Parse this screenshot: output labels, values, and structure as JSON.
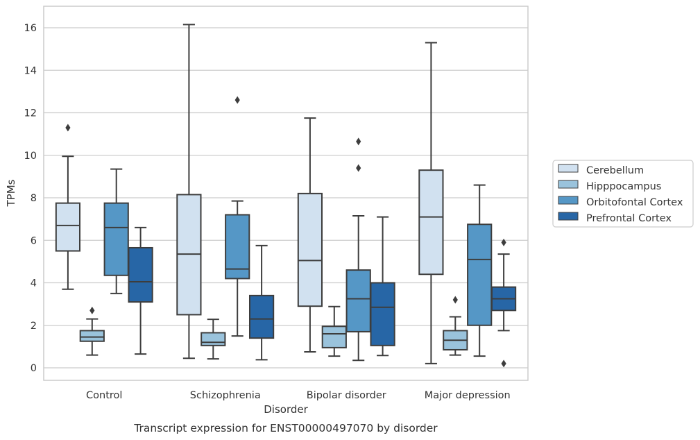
{
  "chart_data": {
    "type": "box",
    "xlabel": "Disorder",
    "ylabel": "TPMs",
    "caption": "Transcript expression for ENST00000497070 by disorder",
    "ylim": [
      -0.6,
      17
    ],
    "yticks": [
      0,
      2,
      4,
      6,
      8,
      10,
      12,
      14,
      16
    ],
    "grid": true,
    "legend_position": "right",
    "categories": [
      "Control",
      "Schizophrenia",
      "Bipolar disorder",
      "Major depression"
    ],
    "series": [
      {
        "name": "Cerebellum",
        "color": "#d1e1f0",
        "boxes": [
          {
            "whisker_low": 3.7,
            "q1": 5.5,
            "median": 6.7,
            "q3": 7.75,
            "whisker_high": 9.95,
            "outliers": [
              11.3
            ]
          },
          {
            "whisker_low": 0.45,
            "q1": 2.5,
            "median": 5.35,
            "q3": 8.15,
            "whisker_high": 16.15,
            "outliers": []
          },
          {
            "whisker_low": 0.75,
            "q1": 2.9,
            "median": 5.05,
            "q3": 8.2,
            "whisker_high": 11.75,
            "outliers": []
          },
          {
            "whisker_low": 0.2,
            "q1": 4.4,
            "median": 7.1,
            "q3": 9.3,
            "whisker_high": 15.3,
            "outliers": []
          }
        ]
      },
      {
        "name": "Hipppocampus",
        "color": "#9ac3dc",
        "boxes": [
          {
            "whisker_low": 0.6,
            "q1": 1.25,
            "median": 1.45,
            "q3": 1.75,
            "whisker_high": 2.3,
            "outliers": [
              2.7
            ]
          },
          {
            "whisker_low": 0.42,
            "q1": 1.05,
            "median": 1.2,
            "q3": 1.65,
            "whisker_high": 2.28,
            "outliers": []
          },
          {
            "whisker_low": 0.55,
            "q1": 0.95,
            "median": 1.6,
            "q3": 1.95,
            "whisker_high": 2.88,
            "outliers": []
          },
          {
            "whisker_low": 0.6,
            "q1": 0.85,
            "median": 1.3,
            "q3": 1.75,
            "whisker_high": 2.4,
            "outliers": [
              3.2
            ]
          }
        ]
      },
      {
        "name": "Orbitofontal Cortex",
        "color": "#5597c6",
        "boxes": [
          {
            "whisker_low": 3.5,
            "q1": 4.35,
            "median": 6.6,
            "q3": 7.75,
            "whisker_high": 9.35,
            "outliers": []
          },
          {
            "whisker_low": 1.5,
            "q1": 4.2,
            "median": 4.65,
            "q3": 7.2,
            "whisker_high": 7.85,
            "outliers": [
              12.6
            ]
          },
          {
            "whisker_low": 0.35,
            "q1": 1.7,
            "median": 3.25,
            "q3": 4.6,
            "whisker_high": 7.15,
            "outliers": [
              9.4,
              10.65
            ]
          },
          {
            "whisker_low": 0.55,
            "q1": 2.0,
            "median": 5.1,
            "q3": 6.75,
            "whisker_high": 8.6,
            "outliers": []
          }
        ]
      },
      {
        "name": "Prefrontal Cortex",
        "color": "#2766a6",
        "boxes": [
          {
            "whisker_low": 0.65,
            "q1": 3.1,
            "median": 4.05,
            "q3": 5.65,
            "whisker_high": 6.6,
            "outliers": []
          },
          {
            "whisker_low": 0.38,
            "q1": 1.4,
            "median": 2.3,
            "q3": 3.4,
            "whisker_high": 5.75,
            "outliers": []
          },
          {
            "whisker_low": 0.58,
            "q1": 1.05,
            "median": 2.85,
            "q3": 4.0,
            "whisker_high": 7.1,
            "outliers": []
          },
          {
            "whisker_low": 1.75,
            "q1": 2.7,
            "median": 3.25,
            "q3": 3.8,
            "whisker_high": 5.35,
            "outliers": [
              5.9,
              0.2
            ]
          }
        ]
      }
    ]
  }
}
